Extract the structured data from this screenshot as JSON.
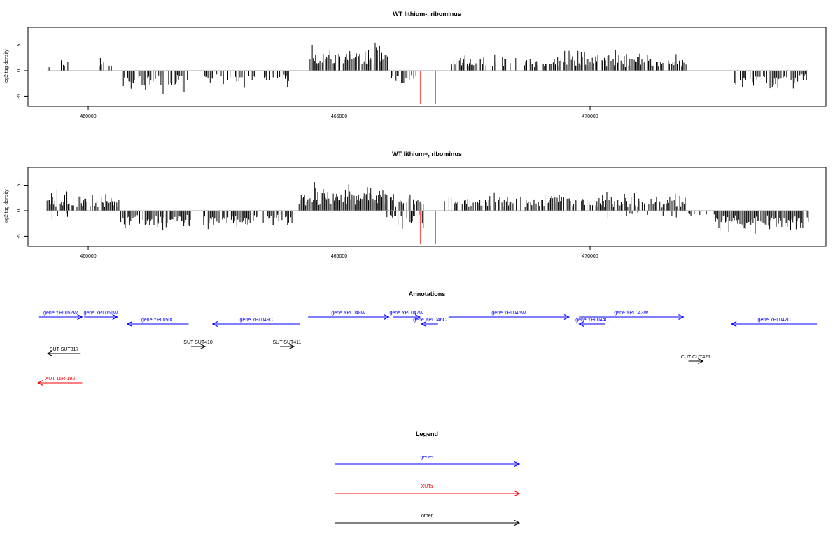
{
  "chart_data": [
    {
      "type": "bar",
      "title": "WT lithium-, ribominus",
      "ylabel": "log2 tag density",
      "xlim": [
        458800,
        474700
      ],
      "ylim": [
        -7,
        8.5
      ],
      "yticks": [
        -5,
        0,
        5
      ],
      "xticks": [
        460000,
        465000,
        470000
      ],
      "xtick_labels": [
        "460000",
        "465000",
        "470000"
      ],
      "colors": {
        "bars": "#000000",
        "highlight": "#ff5a5a",
        "baseline": "#a0a0a0"
      },
      "highlight": [
        {
          "x": 466620,
          "value": -6.6
        },
        {
          "x": 466920,
          "value": -6.6
        }
      ]
    },
    {
      "type": "bar",
      "title": "WT lithium+, ribominus",
      "ylabel": "log2 tag density",
      "xlim": [
        458800,
        474700
      ],
      "ylim": [
        -7,
        8.5
      ],
      "yticks": [
        -5,
        0,
        5
      ],
      "xticks": [
        460000,
        465000,
        470000
      ],
      "xtick_labels": [
        "460000",
        "465000",
        "470000"
      ],
      "colors": {
        "bars": "#000000",
        "highlight": "#ff5a5a",
        "baseline": "#a0a0a0"
      },
      "highlight": [
        {
          "x": 466620,
          "value": -6.6
        },
        {
          "x": 466920,
          "value": -6.6
        }
      ]
    }
  ],
  "annotations": {
    "title": "Annotations",
    "features": [
      {
        "label": "gene YPL052W",
        "start": 459020,
        "end": 459880,
        "strand": "+",
        "kind": "gene",
        "row": 0
      },
      {
        "label": "gene YPL051W",
        "start": 459920,
        "end": 460580,
        "strand": "+",
        "kind": "gene",
        "row": 0
      },
      {
        "label": "gene YPL050C",
        "start": 460780,
        "end": 462000,
        "strand": "-",
        "kind": "gene",
        "row": 1
      },
      {
        "label": "gene YPL049C",
        "start": 462480,
        "end": 464220,
        "strand": "-",
        "kind": "gene",
        "row": 1
      },
      {
        "label": "gene YPL048W",
        "start": 464380,
        "end": 465990,
        "strand": "+",
        "kind": "gene",
        "row": 0
      },
      {
        "label": "gene YPL047W",
        "start": 466080,
        "end": 466610,
        "strand": "+",
        "kind": "gene",
        "row": 0
      },
      {
        "label": "gene YPL046C",
        "start": 466640,
        "end": 466970,
        "strand": "-",
        "kind": "gene",
        "row": 1
      },
      {
        "label": "gene YPL045W",
        "start": 467180,
        "end": 469580,
        "strand": "+",
        "kind": "gene",
        "row": 0
      },
      {
        "label": "gene YPL044C",
        "start": 469780,
        "end": 470300,
        "strand": "-",
        "kind": "gene",
        "row": 1
      },
      {
        "label": "gene YPL043W",
        "start": 469780,
        "end": 471860,
        "strand": "+",
        "kind": "gene",
        "row": 0
      },
      {
        "label": "gene YPL042C",
        "start": 472820,
        "end": 474520,
        "strand": "-",
        "kind": "gene",
        "row": 1
      },
      {
        "label": "SUT SUT817",
        "start": 459190,
        "end": 459850,
        "strand": "-",
        "kind": "other",
        "row": 3
      },
      {
        "label": "SUT SUT410",
        "start": 462050,
        "end": 462330,
        "strand": "+",
        "kind": "other",
        "row": 2
      },
      {
        "label": "SUT SUT411",
        "start": 463820,
        "end": 464100,
        "strand": "+",
        "kind": "other",
        "row": 2
      },
      {
        "label": "CUT CUT421",
        "start": 471960,
        "end": 472250,
        "strand": "+",
        "kind": "other",
        "row": 4
      },
      {
        "label": "XUT 16R-192",
        "start": 459000,
        "end": 459880,
        "strand": "-",
        "kind": "xut",
        "row": 5
      }
    ]
  },
  "legend": {
    "title": "Legend",
    "items": [
      {
        "label": "genes",
        "color": "#0000ff"
      },
      {
        "label": "XUTs",
        "color": "#ff0000"
      },
      {
        "label": "other",
        "color": "#000000"
      }
    ]
  }
}
